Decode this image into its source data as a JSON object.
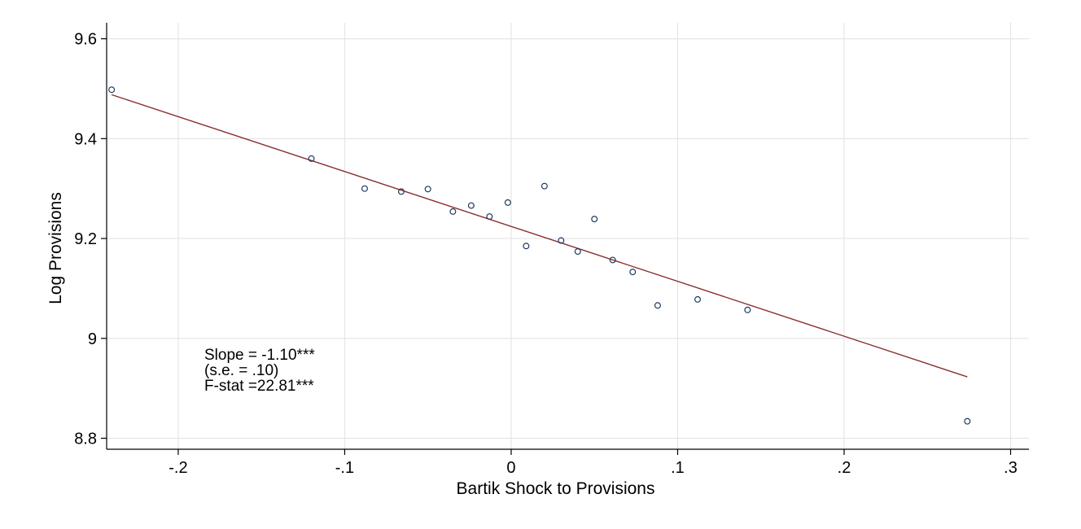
{
  "chart_data": {
    "type": "scatter",
    "title": "",
    "xlabel": "Bartik Shock to Provisions",
    "ylabel": "Log Provisions",
    "xlim": [
      -0.243,
      0.311
    ],
    "ylim": [
      8.778,
      9.632
    ],
    "x_ticks": [
      {
        "value": -0.2,
        "label": "-.2"
      },
      {
        "value": -0.1,
        "label": "-.1"
      },
      {
        "value": 0,
        "label": "0"
      },
      {
        "value": 0.1,
        "label": ".1"
      },
      {
        "value": 0.2,
        "label": ".2"
      },
      {
        "value": 0.3,
        "label": ".3"
      }
    ],
    "y_ticks": [
      {
        "value": 8.8,
        "label": "8.8"
      },
      {
        "value": 9.0,
        "label": "9"
      },
      {
        "value": 9.2,
        "label": "9.2"
      },
      {
        "value": 9.4,
        "label": "9.4"
      },
      {
        "value": 9.6,
        "label": "9.6"
      }
    ],
    "grid": true,
    "points": [
      {
        "x": -0.24,
        "y": 9.498
      },
      {
        "x": -0.12,
        "y": 9.36
      },
      {
        "x": -0.088,
        "y": 9.3
      },
      {
        "x": -0.066,
        "y": 9.294
      },
      {
        "x": -0.05,
        "y": 9.299
      },
      {
        "x": -0.035,
        "y": 9.254
      },
      {
        "x": -0.024,
        "y": 9.266
      },
      {
        "x": -0.013,
        "y": 9.244
      },
      {
        "x": -0.002,
        "y": 9.272
      },
      {
        "x": 0.009,
        "y": 9.185
      },
      {
        "x": 0.02,
        "y": 9.305
      },
      {
        "x": 0.03,
        "y": 9.196
      },
      {
        "x": 0.04,
        "y": 9.174
      },
      {
        "x": 0.05,
        "y": 9.239
      },
      {
        "x": 0.061,
        "y": 9.157
      },
      {
        "x": 0.073,
        "y": 9.133
      },
      {
        "x": 0.088,
        "y": 9.066
      },
      {
        "x": 0.112,
        "y": 9.078
      },
      {
        "x": 0.142,
        "y": 9.057
      },
      {
        "x": 0.274,
        "y": 8.834
      }
    ],
    "fit_line": {
      "x": [
        -0.24,
        0.274
      ],
      "y": [
        9.488,
        8.923
      ],
      "color": "#8b2e2e"
    },
    "marker_color": "#1f3a5f",
    "annotation": [
      "Slope = -1.10***",
      "(s.e. = .10)",
      "F-stat =22.81***"
    ]
  }
}
